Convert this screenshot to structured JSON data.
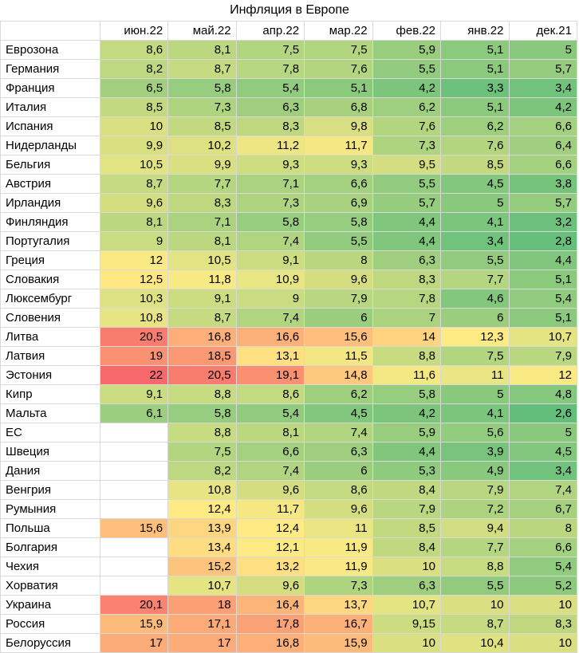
{
  "chart_data": {
    "type": "heatmap",
    "title": "Инфляция в Европе",
    "columns": [
      "июн.22",
      "май.22",
      "апр.22",
      "мар.22",
      "фев.22",
      "янв.22",
      "дек.21"
    ],
    "rows": [
      {
        "name": "Еврозона",
        "values": [
          "8,6",
          "8,1",
          "7,5",
          "7,5",
          "5,9",
          "5,1",
          "5"
        ]
      },
      {
        "name": "Германия",
        "values": [
          "8,2",
          "8,7",
          "7,8",
          "7,6",
          "5,5",
          "5,1",
          "5,7"
        ]
      },
      {
        "name": "Франция",
        "values": [
          "6,5",
          "5,8",
          "5,4",
          "5,1",
          "4,2",
          "3,3",
          "3,4"
        ]
      },
      {
        "name": "Италия",
        "values": [
          "8,5",
          "7,3",
          "6,3",
          "6,8",
          "6,2",
          "5,1",
          "4,2"
        ]
      },
      {
        "name": "Испания",
        "values": [
          "10",
          "8,5",
          "8,3",
          "9,8",
          "7,6",
          "6,2",
          "6,6"
        ]
      },
      {
        "name": "Нидерланды",
        "values": [
          "9,9",
          "10,2",
          "11,2",
          "11,7",
          "7,3",
          "7,6",
          "6,4"
        ]
      },
      {
        "name": "Бельгия",
        "values": [
          "10,5",
          "9,9",
          "9,3",
          "9,3",
          "9,5",
          "8,5",
          "6,6"
        ]
      },
      {
        "name": "Австрия",
        "values": [
          "8,7",
          "7,7",
          "7,1",
          "6,6",
          "5,5",
          "4,5",
          "3,8"
        ]
      },
      {
        "name": "Ирландия",
        "values": [
          "9,6",
          "8,3",
          "7,3",
          "6,9",
          "5,7",
          "5",
          "5,7"
        ]
      },
      {
        "name": "Финляндия",
        "values": [
          "8,1",
          "7,1",
          "5,8",
          "5,8",
          "4,4",
          "4,1",
          "3,2"
        ]
      },
      {
        "name": "Португалия",
        "values": [
          "9",
          "8,1",
          "7,4",
          "5,5",
          "4,4",
          "3,4",
          "2,8"
        ]
      },
      {
        "name": "Греция",
        "values": [
          "12",
          "10,5",
          "9,1",
          "8",
          "6,3",
          "5,5",
          "4,4"
        ]
      },
      {
        "name": "Словакия",
        "values": [
          "12,5",
          "11,8",
          "10,9",
          "9,6",
          "8,3",
          "7,7",
          "5,1"
        ]
      },
      {
        "name": "Люксембург",
        "values": [
          "10,3",
          "9,1",
          "9",
          "7,9",
          "7,8",
          "4,6",
          "5,4"
        ]
      },
      {
        "name": "Словения",
        "values": [
          "10,8",
          "8,7",
          "7,4",
          "6",
          "7",
          "6",
          "5,1"
        ]
      },
      {
        "name": "Литва",
        "values": [
          "20,5",
          "16,8",
          "16,6",
          "15,6",
          "14",
          "12,3",
          "10,7"
        ]
      },
      {
        "name": "Латвия",
        "values": [
          "19",
          "18,5",
          "13,1",
          "11,5",
          "8,8",
          "7,5",
          "7,9"
        ]
      },
      {
        "name": "Эстония",
        "values": [
          "22",
          "20,5",
          "19,1",
          "14,8",
          "11,6",
          "11",
          "12"
        ]
      },
      {
        "name": "Кипр",
        "values": [
          "9,1",
          "8,8",
          "8,6",
          "6,2",
          "5,8",
          "5",
          "4,8"
        ]
      },
      {
        "name": "Мальта",
        "values": [
          "6,1",
          "5,8",
          "5,4",
          "4,5",
          "4,2",
          "4,1",
          "2,6"
        ]
      },
      {
        "name": "ЕС",
        "values": [
          "",
          "8,8",
          "8,1",
          "7,4",
          "5,9",
          "5,6",
          "5"
        ]
      },
      {
        "name": "Швеция",
        "values": [
          "",
          "7,5",
          "6,6",
          "6,3",
          "4,4",
          "3,9",
          "4,5"
        ]
      },
      {
        "name": "Дания",
        "values": [
          "",
          "8,2",
          "7,4",
          "6",
          "5,3",
          "4,9",
          "3,4"
        ]
      },
      {
        "name": "Венгрия",
        "values": [
          "",
          "10,8",
          "9,6",
          "8,6",
          "8,4",
          "7,9",
          "7,4"
        ]
      },
      {
        "name": "Румыния",
        "values": [
          "",
          "12,4",
          "11,7",
          "9,6",
          "7,9",
          "7,2",
          "6,7"
        ]
      },
      {
        "name": "Польша",
        "values": [
          "15,6",
          "13,9",
          "12,4",
          "11",
          "8,5",
          "9,4",
          "8"
        ]
      },
      {
        "name": "Болгария",
        "values": [
          "",
          "13,4",
          "12,1",
          "11,9",
          "8,4",
          "7,7",
          "6,6"
        ]
      },
      {
        "name": "Чехия",
        "values": [
          "",
          "15,2",
          "13,2",
          "11,9",
          "10",
          "8,8",
          "5,4"
        ]
      },
      {
        "name": "Хорватия",
        "values": [
          "",
          "10,7",
          "9,6",
          "7,3",
          "6,3",
          "5,5",
          "5,2"
        ]
      },
      {
        "name": "Украина",
        "values": [
          "20,1",
          "18",
          "16,4",
          "13,7",
          "10,7",
          "10",
          "10"
        ]
      },
      {
        "name": "Россия",
        "values": [
          "15,9",
          "17,1",
          "17,8",
          "16,7",
          "9,15",
          "8,7",
          "8,3"
        ]
      },
      {
        "name": "Белоруссия",
        "values": [
          "17",
          "17",
          "16,8",
          "15,9",
          "10",
          "10,4",
          "10"
        ]
      }
    ],
    "color_scale": {
      "low": "#63be7b",
      "mid": "#ffeb84",
      "high": "#f8696b",
      "min": 2.6,
      "max": 22
    }
  }
}
